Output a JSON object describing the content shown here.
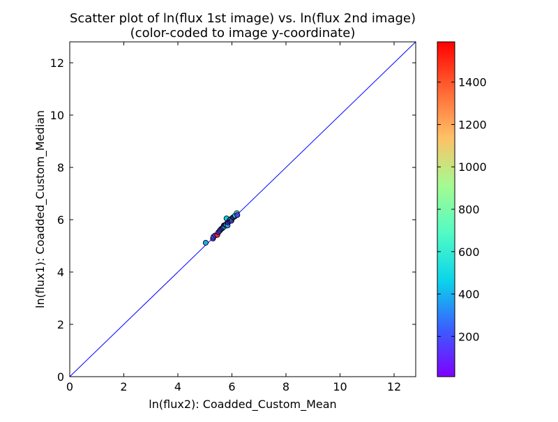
{
  "chart_data": {
    "type": "scatter",
    "title": "Scatter plot of ln(flux 1st image) vs. ln(flux 2nd image)",
    "subtitle": "(color-coded to image y-coordinate)",
    "xlabel": "ln(flux2): Coadded_Custom_Mean",
    "ylabel": "ln(flux1): Coadded_Custom_Median",
    "xlim": [
      0,
      12.8
    ],
    "ylim": [
      0,
      12.8
    ],
    "xticks": [
      0,
      2,
      4,
      6,
      8,
      10,
      12
    ],
    "yticks": [
      0,
      2,
      4,
      6,
      8,
      10,
      12
    ],
    "grid": false,
    "reference_line": {
      "x": [
        0,
        12.8
      ],
      "y": [
        0,
        12.8
      ],
      "color": "#0000ff"
    },
    "colorbar": {
      "colormap": "rainbow",
      "range": [
        10,
        1590
      ],
      "ticks": [
        200,
        400,
        600,
        800,
        1000,
        1200,
        1400
      ],
      "stops": [
        "#7f00ff",
        "#3a5ffe",
        "#0ad4ea",
        "#52fbc5",
        "#a4fb91",
        "#ffc166",
        "#ff6633",
        "#ff0000"
      ]
    },
    "points": [
      {
        "x": 5.03,
        "y": 5.12,
        "c": 380
      },
      {
        "x": 5.3,
        "y": 5.28,
        "c": 120
      },
      {
        "x": 5.32,
        "y": 5.35,
        "c": 250
      },
      {
        "x": 5.38,
        "y": 5.4,
        "c": 90
      },
      {
        "x": 5.46,
        "y": 5.42,
        "c": 1500
      },
      {
        "x": 5.5,
        "y": 5.52,
        "c": 60
      },
      {
        "x": 5.55,
        "y": 5.58,
        "c": 300
      },
      {
        "x": 5.58,
        "y": 5.62,
        "c": 150
      },
      {
        "x": 5.62,
        "y": 5.66,
        "c": 500
      },
      {
        "x": 5.65,
        "y": 5.68,
        "c": 80
      },
      {
        "x": 5.68,
        "y": 5.72,
        "c": 220
      },
      {
        "x": 5.7,
        "y": 5.78,
        "c": 40
      },
      {
        "x": 5.72,
        "y": 5.74,
        "c": 400
      },
      {
        "x": 5.75,
        "y": 5.8,
        "c": 130
      },
      {
        "x": 5.78,
        "y": 5.82,
        "c": 600
      },
      {
        "x": 5.8,
        "y": 6.05,
        "c": 450
      },
      {
        "x": 5.82,
        "y": 5.86,
        "c": 70
      },
      {
        "x": 5.84,
        "y": 5.78,
        "c": 350
      },
      {
        "x": 5.86,
        "y": 5.9,
        "c": 180
      },
      {
        "x": 5.9,
        "y": 5.94,
        "c": 260
      },
      {
        "x": 5.92,
        "y": 5.98,
        "c": 30
      },
      {
        "x": 5.95,
        "y": 6.02,
        "c": 420
      },
      {
        "x": 5.98,
        "y": 5.96,
        "c": 110
      },
      {
        "x": 6.0,
        "y": 6.04,
        "c": 550
      },
      {
        "x": 6.03,
        "y": 6.08,
        "c": 200
      },
      {
        "x": 6.06,
        "y": 6.1,
        "c": 320
      },
      {
        "x": 6.1,
        "y": 6.12,
        "c": 90
      },
      {
        "x": 6.12,
        "y": 6.16,
        "c": 480
      },
      {
        "x": 6.18,
        "y": 6.25,
        "c": 650
      },
      {
        "x": 6.2,
        "y": 6.18,
        "c": 160
      }
    ]
  }
}
